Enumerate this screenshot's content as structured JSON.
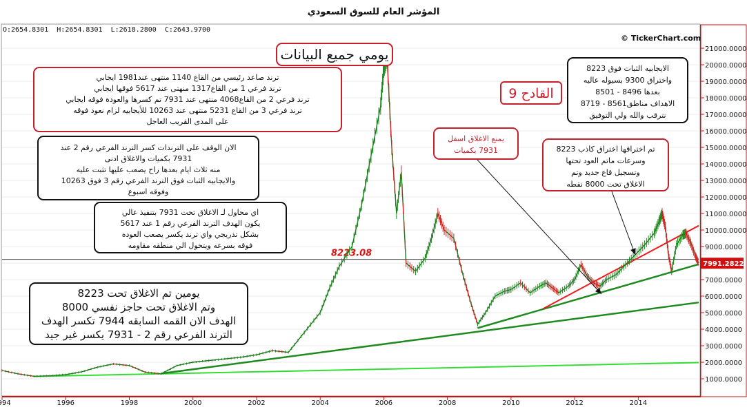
{
  "title": "المؤشر العام للسوق السعودي",
  "ohlc": {
    "o": "O:2654.8301",
    "h": "H:2654.8301",
    "l": "L:2618.2800",
    "c": "C:2643.9700"
  },
  "brand": "© TickerChart.com",
  "annotations": {
    "daily_all_data": "يومي جميع البيانات",
    "qadeh": "القادح 9",
    "main_trends": "ترند صاعد رئيسي من القاع 1140 منتهى عند1981 ايجابي\nترند فرعي 1 من القاع1317 منهتى عند 5617 فوقها ايجابي\nترند فرعي 2 من القاع4068 منتهى عند 7931 تم كسرها والعودة فوقه ايجابي\nترند فرعي 3 من القاع 5231 منتهى عند 10263 للأيجابيه لزام نعود فوقه\nعلى المدى القريب العاجل",
    "stop_note": "الان الوقف على الترندات كسر الترند الفرعي رقم 2 عند\n7931 بكميات والاغلاق ادنى\nمنه ثلاث ايام بعدها راح يصعب عليها تثبت عليه\nوالايجابيه الثبات فوق الترند الفرعي رقم 3 فوق 10263\nوفوقه اسبوع",
    "attempt_note": "اي محاول لـ الاغلاق تحت 7931 بتنفيذ عالي\nيكون الهدف الترند الفرعي رقم 1 عند 5617\nبشكل تدريجي واي ترند يكسر يصعب العوده\nفوقه بسرعه ويتحول الي منطقه مقاومه",
    "positive_note": "الايجابيه الثبات فوق 8223\nواختراق 9300 بسيوله عاليه\nبعدها 8496 - 8501\nالاهداف مناطق8561 - 8719\nنترقب والله ولي التوفيق",
    "prevent_close": "يمنع الاغلاق اسفل\n7931 بكميات",
    "breakout_note": "تم اختراقها اختراق كاذب 8223\nوسرعات ماتم العود تحتها\nوتسجيل قاع جديد وتم\nالاغلاق  تحت 8000 نقطه",
    "bottom_note": "يومين تم الاغلاق تحت 8223\nوتم الاغلاق تحت حاجز نفسي 8000\nالهدف الان القمه السابقه 7944 تكسر الهدف\nالترند الفرعي رقم 2 - 7931 يكسر غير جيد"
  },
  "chart_data": {
    "type": "line",
    "title": "المؤشر العام للسوق السعودي",
    "y_ticks": [
      "21000.0000",
      "20000.0000",
      "19000.0000",
      "18000.0000",
      "17000.0000",
      "16000.0000",
      "15000.0000",
      "14000.0000",
      "13000.0000",
      "12000.0000",
      "11000.0000",
      "10000.0000",
      "9000.0000",
      "8000.0000",
      "7000.0000",
      "6000.0000",
      "5000.0000",
      "4000.0000",
      "3000.0000",
      "2000.0000",
      "1000.0000"
    ],
    "x_ticks": [
      "1994",
      "1996",
      "1998",
      "2000",
      "2002",
      "2004",
      "2006",
      "2008",
      "2010",
      "2012",
      "2014"
    ],
    "ylim": [
      0,
      22000
    ],
    "xlim": [
      1994.0,
      2015.9
    ],
    "last_price_label": "7991.2822",
    "level_label": "8223.08",
    "level_value": 8223.08,
    "colors": {
      "price": "#1c7a1c",
      "trend": "#1f8a1f",
      "lightTrend": "#33dd33",
      "redTrend": "#ee1c1c",
      "axis": "#cc1111",
      "priceBox": "#d01010"
    },
    "series": [
      {
        "values": [
          [
            1994.0,
            1500
          ],
          [
            1994.5,
            1300
          ],
          [
            1995.0,
            1150
          ],
          [
            1995.5,
            1180
          ],
          [
            1996.0,
            1250
          ],
          [
            1996.5,
            1420
          ],
          [
            1997.0,
            1700
          ],
          [
            1997.5,
            1900
          ],
          [
            1998.0,
            1800
          ],
          [
            1998.5,
            1400
          ],
          [
            1999.0,
            1300
          ],
          [
            1999.5,
            1800
          ],
          [
            2000.0,
            2000
          ],
          [
            2000.5,
            2100
          ],
          [
            2001.0,
            2200
          ],
          [
            2001.5,
            2300
          ],
          [
            2002.0,
            2450
          ],
          [
            2002.5,
            2700
          ],
          [
            2003.0,
            2600
          ],
          [
            2003.5,
            3800
          ],
          [
            2004.0,
            5000
          ],
          [
            2004.3,
            6500
          ],
          [
            2004.6,
            7800
          ],
          [
            2005.0,
            9000
          ],
          [
            2005.3,
            11500
          ],
          [
            2005.6,
            14500
          ],
          [
            2005.9,
            17500
          ],
          [
            2006.0,
            19800
          ],
          [
            2006.1,
            20500
          ],
          [
            2006.25,
            15000
          ],
          [
            2006.4,
            11000
          ],
          [
            2006.55,
            13500
          ],
          [
            2006.7,
            8000
          ],
          [
            2007.0,
            7500
          ],
          [
            2007.3,
            8300
          ],
          [
            2007.5,
            9500
          ],
          [
            2007.7,
            11000
          ],
          [
            2007.9,
            10000
          ],
          [
            2008.2,
            9500
          ],
          [
            2008.5,
            7200
          ],
          [
            2008.75,
            5500
          ],
          [
            2008.95,
            4300
          ],
          [
            2009.2,
            5000
          ],
          [
            2009.5,
            6000
          ],
          [
            2009.8,
            6300
          ],
          [
            2010.0,
            6400
          ],
          [
            2010.3,
            6800
          ],
          [
            2010.6,
            6200
          ],
          [
            2010.9,
            6600
          ],
          [
            2011.1,
            6800
          ],
          [
            2011.3,
            6500
          ],
          [
            2011.5,
            6200
          ],
          [
            2011.8,
            6600
          ],
          [
            2012.0,
            7000
          ],
          [
            2012.2,
            7900
          ],
          [
            2012.4,
            7200
          ],
          [
            2012.6,
            6800
          ],
          [
            2012.8,
            6600
          ],
          [
            2013.0,
            7000
          ],
          [
            2013.3,
            7300
          ],
          [
            2013.6,
            7900
          ],
          [
            2013.9,
            8500
          ],
          [
            2014.2,
            9100
          ],
          [
            2014.5,
            9800
          ],
          [
            2014.65,
            10500
          ],
          [
            2014.75,
            11000
          ],
          [
            2014.85,
            10200
          ],
          [
            2014.95,
            8500
          ],
          [
            2015.05,
            7500
          ],
          [
            2015.2,
            9100
          ],
          [
            2015.4,
            9700
          ],
          [
            2015.5,
            9800
          ],
          [
            2015.65,
            9200
          ],
          [
            2015.8,
            8400
          ],
          [
            2015.9,
            7991
          ]
        ]
      }
    ],
    "trendlines": [
      {
        "name": "main-uptrend",
        "from": [
          1995.0,
          1140
        ],
        "to": [
          2015.9,
          1981
        ]
      },
      {
        "name": "subtrend-1",
        "from": [
          1999.0,
          1317
        ],
        "to": [
          2015.9,
          5617
        ]
      },
      {
        "name": "subtrend-2",
        "from": [
          2008.95,
          4068
        ],
        "to": [
          2015.9,
          7931
        ]
      },
      {
        "name": "subtrend-3",
        "from": [
          2011.0,
          5231
        ],
        "to": [
          2015.9,
          10263
        ]
      }
    ]
  }
}
